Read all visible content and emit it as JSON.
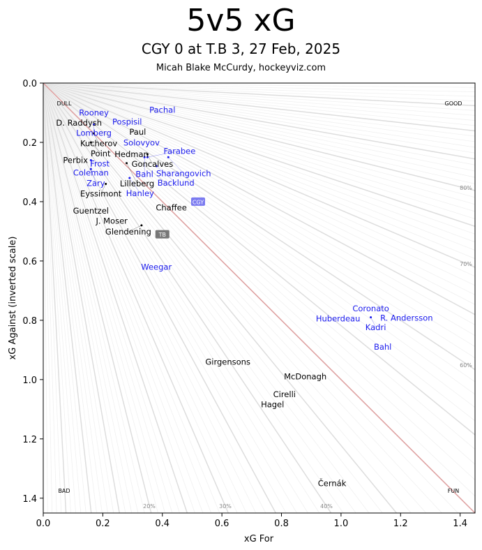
{
  "header": {
    "title": "5v5 xG",
    "subtitle": "CGY 0 at T.B 3, 27 Feb, 2025",
    "credit": "Micah Blake McCurdy, hockeyviz.com"
  },
  "colors": {
    "cgy": "#1a1aee",
    "tb": "#000000",
    "cgy_team_box": "#7b7bf0",
    "tb_team_box": "#777777",
    "diagonal": "#e0a0a0",
    "ray": "#dddddd"
  },
  "chart_data": {
    "type": "scatter",
    "title": "5v5 xG",
    "xlabel": "xG For",
    "ylabel": "xG Against (inverted scale)",
    "xlim": [
      0,
      1.45
    ],
    "ylim": [
      1.45,
      0
    ],
    "y_inverted": true,
    "xticks": [
      "0.0",
      "0.2",
      "0.4",
      "0.6",
      "0.8",
      "1.0",
      "1.2",
      "1.4"
    ],
    "yticks": [
      "0.0",
      "0.2",
      "0.4",
      "0.6",
      "0.8",
      "1.0",
      "1.2",
      "1.4"
    ],
    "corner_labels": [
      "DULL",
      "GOOD",
      "BAD",
      "FUN"
    ],
    "pct_labels": [
      "20%",
      "30%",
      "40%",
      "60%",
      "70%",
      "80%"
    ],
    "teams": [
      {
        "name": "CGY",
        "xgf": 0.52,
        "xga": 0.4
      },
      {
        "name": "TB",
        "xgf": 0.4,
        "xga": 0.51
      }
    ],
    "series": [
      {
        "name": "CGY",
        "points": [
          {
            "label": "Pachal",
            "x": 0.4,
            "y": 0.09
          },
          {
            "label": "Rooney",
            "x": 0.17,
            "y": 0.1
          },
          {
            "label": "Lomberg",
            "x": 0.17,
            "y": 0.14
          },
          {
            "label": "Pospisil",
            "x": 0.27,
            "y": 0.13
          },
          {
            "label": "Solovyov",
            "x": 0.33,
            "y": 0.18
          },
          {
            "label": "Coleman",
            "x": 0.16,
            "y": 0.26
          },
          {
            "label": "Frost",
            "x": 0.19,
            "y": 0.25
          },
          {
            "label": "Zary",
            "x": 0.16,
            "y": 0.29
          },
          {
            "label": "Farabee",
            "x": 0.35,
            "y": 0.25
          },
          {
            "label": "Bahl",
            "x": 0.34,
            "y": 0.25
          },
          {
            "label": "Sharangovich",
            "x": 0.42,
            "y": 0.25
          },
          {
            "label": "Backlund",
            "x": 0.38,
            "y": 0.28
          },
          {
            "label": "Hanley",
            "x": 0.29,
            "y": 0.32
          },
          {
            "label": "Weegar",
            "x": 0.38,
            "y": 0.62
          },
          {
            "label": "Huberdeau",
            "x": 0.99,
            "y": 0.78
          },
          {
            "label": "Coronato",
            "x": 1.1,
            "y": 0.76
          },
          {
            "label": "Kadri",
            "x": 1.1,
            "y": 0.79
          },
          {
            "label": "R. Andersson",
            "x": 1.22,
            "y": 0.77
          },
          {
            "label": "Bahl",
            "x": 1.14,
            "y": 0.89
          }
        ]
      },
      {
        "name": "TB",
        "points": [
          {
            "label": "D. Raddysh",
            "x": 0.12,
            "y": 0.12
          },
          {
            "label": "Paul",
            "x": 0.31,
            "y": 0.16
          },
          {
            "label": "Kucherov",
            "x": 0.17,
            "y": 0.17
          },
          {
            "label": "Point",
            "x": 0.16,
            "y": 0.2
          },
          {
            "label": "Hedman",
            "x": 0.28,
            "y": 0.23
          },
          {
            "label": "Goncalves",
            "x": 0.35,
            "y": 0.24
          },
          {
            "label": "Perbix",
            "x": 0.12,
            "y": 0.26
          },
          {
            "label": "Lilleberg",
            "x": 0.28,
            "y": 0.27
          },
          {
            "label": "Eyssimont",
            "x": 0.21,
            "y": 0.34
          },
          {
            "label": "Chaffee",
            "x": 0.43,
            "y": 0.42
          },
          {
            "label": "Guentzel",
            "x": 0.16,
            "y": 0.43
          },
          {
            "label": "J. Moser",
            "x": 0.23,
            "y": 0.45
          },
          {
            "label": "Glendening",
            "x": 0.33,
            "y": 0.48
          },
          {
            "label": "Girgensons",
            "x": 0.62,
            "y": 0.94
          },
          {
            "label": "McDonagh",
            "x": 0.88,
            "y": 0.99
          },
          {
            "label": "Cirelli",
            "x": 0.81,
            "y": 1.05
          },
          {
            "label": "Hagel",
            "x": 0.77,
            "y": 1.07
          },
          {
            "label": "Černák",
            "x": 0.97,
            "y": 1.35
          }
        ]
      }
    ]
  }
}
